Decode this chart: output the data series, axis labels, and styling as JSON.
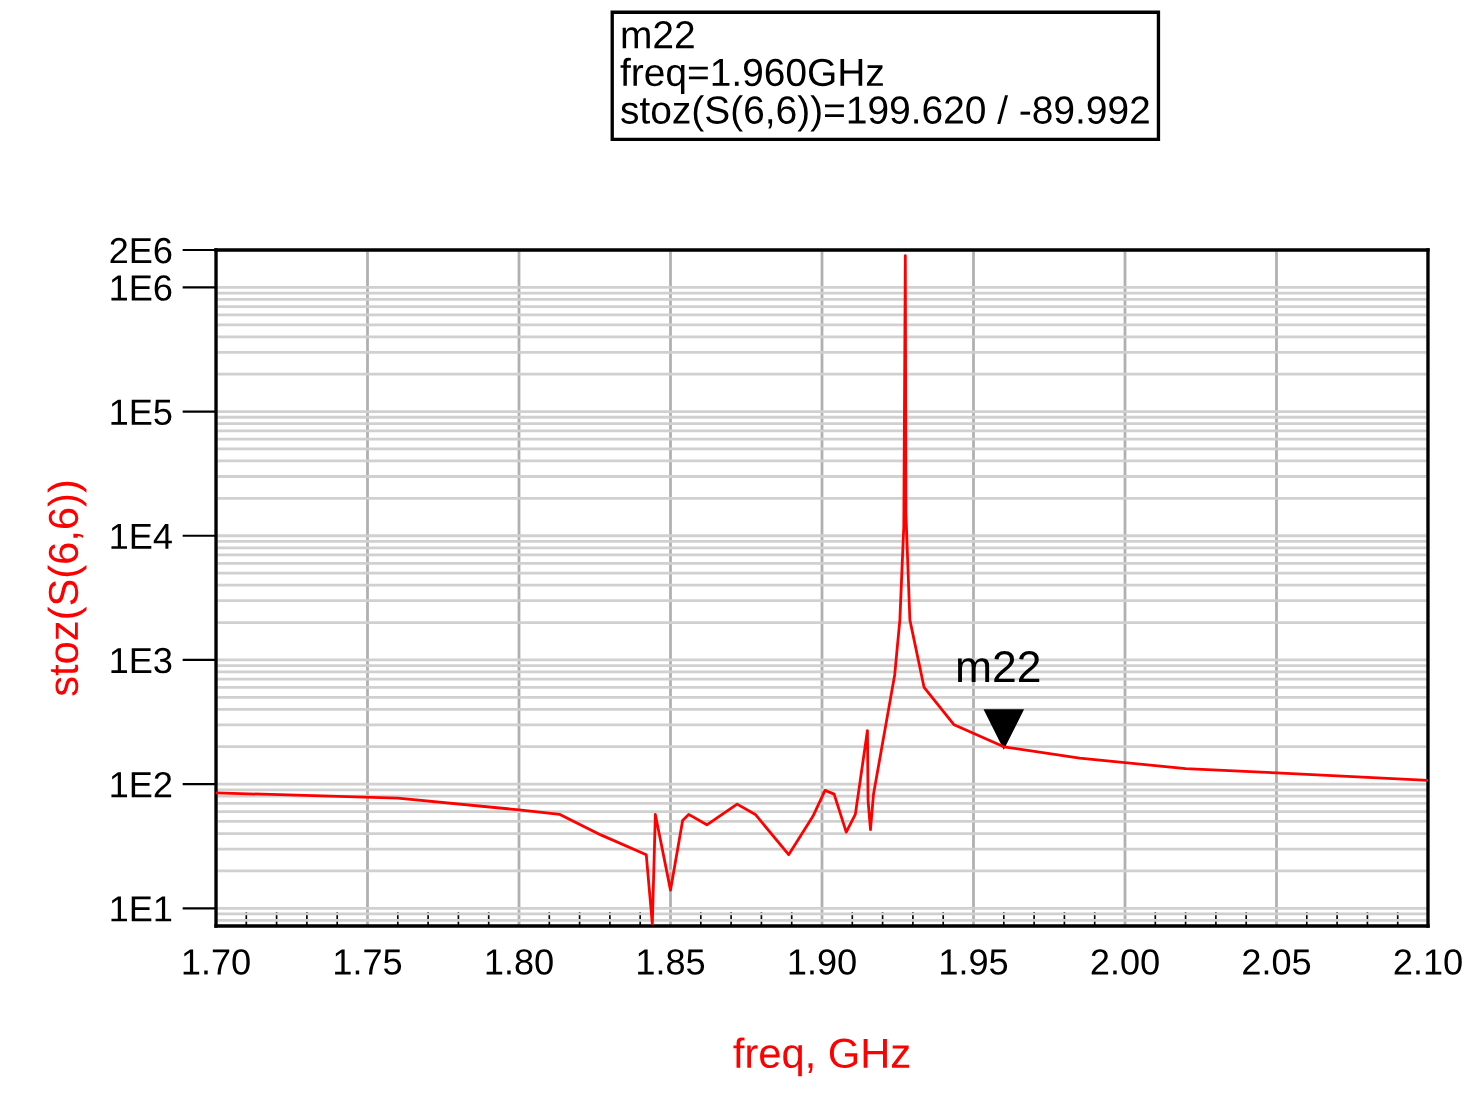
{
  "chart_data": {
    "type": "line",
    "xlabel": "freq, GHz",
    "ylabel": "stoz(S(6,6))",
    "log": "y",
    "grid": true,
    "legend": false,
    "marker": "none",
    "line_style": "solid",
    "x": [
      1.7,
      1.76,
      1.8,
      1.8135,
      1.827,
      1.842,
      1.844,
      1.845,
      1.85,
      1.854,
      1.856,
      1.862,
      1.872,
      1.878,
      1.889,
      1.897,
      1.901,
      1.904,
      1.908,
      1.911,
      1.915,
      1.9152,
      1.916,
      1.917,
      1.924,
      1.9257,
      1.927,
      1.9275,
      1.9277,
      1.929,
      1.9337,
      1.9436,
      1.96,
      1.985,
      2.02,
      2.05,
      2.1
    ],
    "series": [
      {
        "color": "#ff0000",
        "values": [
          85,
          77,
          62,
          57,
          39,
          27,
          7.5,
          57,
          14,
          51,
          57,
          47,
          69,
          57,
          27,
          55,
          89,
          83,
          41,
          57,
          270,
          74,
          43,
          83,
          760,
          2100,
          12000,
          1800000,
          15000,
          2100,
          600,
          300,
          199.62,
          162,
          133,
          123,
          107
        ]
      }
    ],
    "xlim": [
      1.7,
      2.1
    ],
    "xticks": [
      {
        "value": 1.7,
        "label": "1.70"
      },
      {
        "value": 1.75,
        "label": "1.75"
      },
      {
        "value": 1.8,
        "label": "1.80"
      },
      {
        "value": 1.85,
        "label": "1.85"
      },
      {
        "value": 1.9,
        "label": "1.90"
      },
      {
        "value": 1.95,
        "label": "1.95"
      },
      {
        "value": 2.0,
        "label": "2.00"
      },
      {
        "value": 2.05,
        "label": "2.05"
      },
      {
        "value": 2.1,
        "label": "2.10"
      }
    ],
    "ylim": [
      7.2,
      2000000
    ],
    "yticks": [
      {
        "value": 10,
        "label": "1E1"
      },
      {
        "value": 100,
        "label": "1E2"
      },
      {
        "value": 1000,
        "label": "1E3"
      },
      {
        "value": 10000,
        "label": "1E4"
      },
      {
        "value": 100000,
        "label": "1E5"
      },
      {
        "value": 1000000,
        "label": "1E6"
      },
      {
        "value": 2000000,
        "label": "2E6"
      }
    ],
    "annotations": [
      "m22\nfreq=1.960GHz\nstoz(S(6,6))=199.620 / -89.992",
      {
        "text": "m22",
        "x": 1.96,
        "y": 199.62
      }
    ]
  }
}
